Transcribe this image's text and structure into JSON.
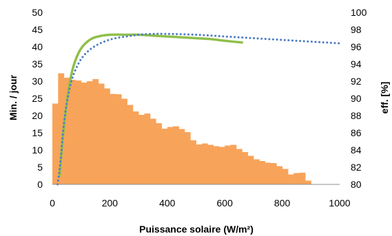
{
  "chart_data": {
    "type": "bar",
    "xlabel": "Puissance solaire (W/m²)",
    "ylabel": "Min. / jour",
    "y2label": "eff. [%]",
    "xlim": [
      0,
      1000
    ],
    "ylim": [
      0,
      50
    ],
    "y2lim": [
      80,
      100
    ],
    "x_ticks": [
      0,
      200,
      400,
      600,
      800,
      1000
    ],
    "y_ticks": [
      0,
      5,
      10,
      15,
      20,
      25,
      30,
      35,
      40,
      45,
      50
    ],
    "y2_ticks": [
      80,
      82,
      84,
      86,
      88,
      90,
      92,
      94,
      96,
      98,
      100
    ],
    "grid": false,
    "legend": "none",
    "histogram": {
      "bin_width": 20,
      "color": "#f8a35a",
      "x": [
        0,
        20,
        40,
        60,
        80,
        100,
        120,
        140,
        160,
        180,
        200,
        220,
        240,
        260,
        280,
        300,
        320,
        340,
        360,
        380,
        400,
        420,
        440,
        460,
        480,
        500,
        520,
        540,
        560,
        580,
        600,
        620,
        640,
        660,
        680,
        700,
        720,
        740,
        760,
        780,
        800,
        820,
        840,
        860,
        880
      ],
      "values": [
        23.5,
        32.3,
        31,
        30.4,
        30.2,
        29.6,
        30,
        30.6,
        29.3,
        27.9,
        26.3,
        26.2,
        24.9,
        23.1,
        21.2,
        20.2,
        20.6,
        19.1,
        17.8,
        16.2,
        16.7,
        16.9,
        16.1,
        15.2,
        12.8,
        11.6,
        11.9,
        11.5,
        11.1,
        10.9,
        11.3,
        11.5,
        10.3,
        9.4,
        8.3,
        7.3,
        6.8,
        6.3,
        6.2,
        5.3,
        4.5,
        2.9,
        3.3,
        3.4,
        1.1
      ]
    },
    "series": [
      {
        "axis": "right",
        "style": "solid",
        "color": "#8fbf4a",
        "x": [
          25,
          35,
          50,
          65,
          80,
          100,
          130,
          160,
          200,
          250,
          300,
          350,
          400,
          450,
          500,
          550,
          600,
          660
        ],
        "y": [
          81,
          85,
          89.5,
          92.6,
          94.4,
          95.8,
          96.8,
          97.2,
          97.4,
          97.4,
          97.4,
          97.3,
          97.2,
          97.1,
          97,
          96.9,
          96.7,
          96.5
        ]
      },
      {
        "axis": "right",
        "style": "dotted",
        "color": "#4f7dc4",
        "x": [
          18,
          28,
          40,
          55,
          70,
          90,
          110,
          140,
          180,
          220,
          260,
          300,
          350,
          400,
          500,
          600,
          700,
          800,
          900,
          1000
        ],
        "y": [
          80,
          82.5,
          87,
          90.3,
          92.4,
          94,
          95,
          95.9,
          96.6,
          97,
          97.2,
          97.4,
          97.5,
          97.5,
          97.4,
          97.2,
          97,
          96.8,
          96.6,
          96.4
        ]
      }
    ]
  }
}
